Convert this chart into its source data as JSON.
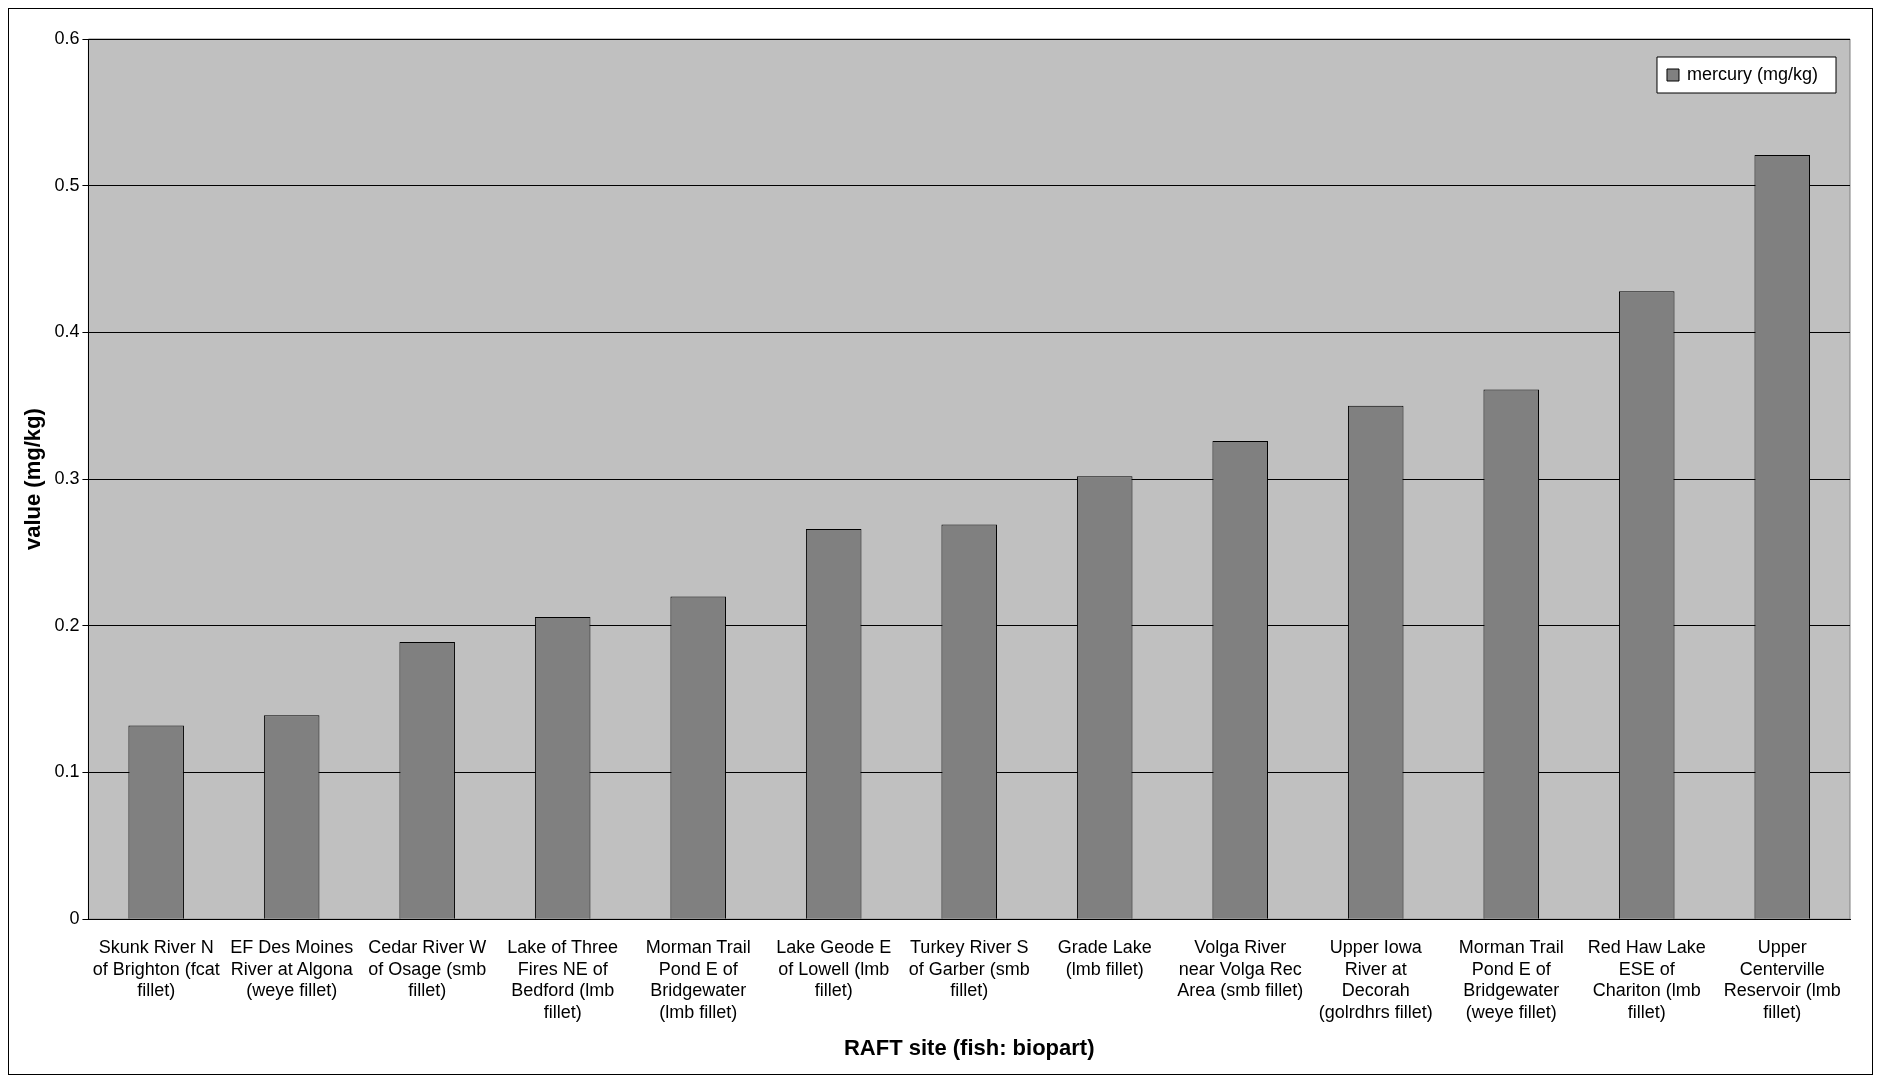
{
  "chart_data": {
    "type": "bar",
    "xlabel": "RAFT site (fish: biopart)",
    "ylabel": "value (mg/kg)",
    "categories": [
      "Skunk River N of Brighton (fcat fillet)",
      "EF Des Moines River at Algona (weye fillet)",
      "Cedar River W of Osage (smb fillet)",
      "Lake of Three Fires NE of Bedford (lmb fillet)",
      "Morman Trail Pond E of Bridgewater (lmb fillet)",
      "Lake Geode E of Lowell (lmb fillet)",
      "Turkey River S of Garber (smb fillet)",
      "Grade Lake (lmb fillet)",
      "Volga River near Volga Rec Area (smb fillet)",
      "Upper Iowa River at Decorah (golrdhrs fillet)",
      "Morman Trail Pond E of Bridgewater (weye fillet)",
      "Red Haw Lake ESE of Chariton (lmb fillet)",
      "Upper Centerville Reservoir (lmb fillet)"
    ],
    "series": [
      {
        "name": "mercury (mg/kg)",
        "color": "#808080",
        "values": [
          0.132,
          0.139,
          0.189,
          0.206,
          0.22,
          0.266,
          0.269,
          0.302,
          0.326,
          0.35,
          0.361,
          0.428,
          0.521
        ]
      }
    ],
    "ylim": [
      0,
      0.6
    ],
    "yticks": [
      0,
      0.1,
      0.2,
      0.3,
      0.4,
      0.5,
      0.6
    ],
    "grid": "y",
    "legend": "top right"
  }
}
